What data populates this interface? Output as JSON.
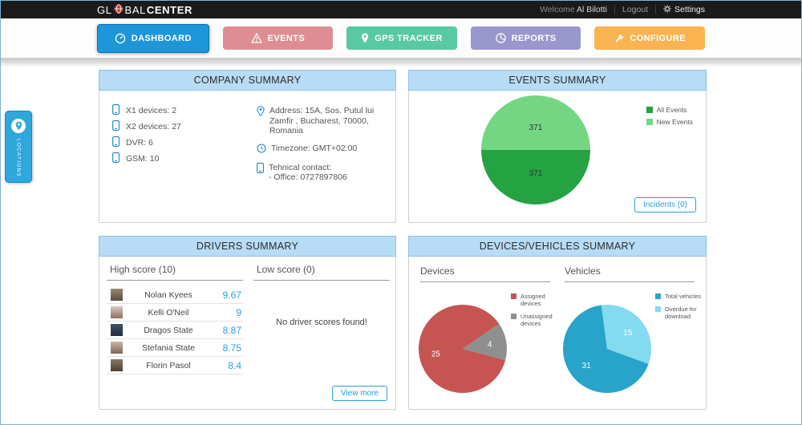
{
  "topbar": {
    "logo_prefix": "GL",
    "logo_mid": "BAL",
    "logo_suffix": "CENTER",
    "welcome_label": "Welcome",
    "username": "Al Bilotti",
    "logout": "Logout",
    "settings": "Settings"
  },
  "nav": {
    "tabs": [
      {
        "label": "DASHBOARD",
        "color": "#1e96d9",
        "icon": "dashboard-icon",
        "active": true
      },
      {
        "label": "EVENTS",
        "color": "#df8d94",
        "icon": "warning-icon",
        "active": false
      },
      {
        "label": "GPS TRACKER",
        "color": "#58c9a4",
        "icon": "pin-icon",
        "active": false
      },
      {
        "label": "REPORTS",
        "color": "#9997cb",
        "icon": "pie-chart-icon",
        "active": false
      },
      {
        "label": "CONFIGURE",
        "color": "#f9b451",
        "icon": "wrench-icon",
        "active": false
      }
    ]
  },
  "locations": {
    "label": "LOCATIONS"
  },
  "panels": {
    "company": {
      "title": "COMPANY SUMMARY",
      "devices": [
        {
          "label": "X1 devices: 2"
        },
        {
          "label": "X2 devices: 27"
        },
        {
          "label": "DVR: 6"
        },
        {
          "label": "GSM: 10"
        }
      ],
      "address": "Address: 15A, Sos. Putul lui Zamfir , Bucharest, 70000, Romania",
      "timezone": "Timezone: GMT+02:00",
      "contact_title": "Tehnical contact:",
      "contact_office": "- Office: 0727897806"
    },
    "events": {
      "title": "EVENTS SUMMARY",
      "incidents_button": "Incidents (0)"
    },
    "drivers": {
      "title": "DRIVERS SUMMARY",
      "high_header": "High score (10)",
      "low_header": "Low score (0)",
      "high_scores": [
        {
          "name": "Nolan Kyees",
          "score": "9.67"
        },
        {
          "name": "Kelli O'Neil",
          "score": "9"
        },
        {
          "name": "Dragos State",
          "score": "8.87"
        },
        {
          "name": "Stefania State",
          "score": "8.75"
        },
        {
          "name": "Florin Pasol",
          "score": "8.4"
        }
      ],
      "no_scores_message": "No driver scores found!",
      "view_more_button": "View more"
    },
    "devices_vehicles": {
      "title": "DEVICES/VEHICLES SUMMARY",
      "devices_header": "Devices",
      "vehicles_header": "Vehicles"
    }
  },
  "chart_data": [
    {
      "id": "events-pie",
      "type": "pie",
      "title": "Events Summary",
      "labels": [
        "All Events",
        "New Events"
      ],
      "values": [
        371,
        371
      ],
      "colors": [
        "#25a242",
        "#74d683"
      ],
      "start_angle": 90,
      "label_color": "#333333",
      "label_r": 0.42,
      "legend_position": "top-right"
    },
    {
      "id": "devices-pie",
      "type": "pie",
      "title": "Devices",
      "labels": [
        "Assigned devices",
        "Unassigned devices"
      ],
      "values": [
        25,
        4
      ],
      "colors": [
        "#c65452",
        "#8f8f8f"
      ],
      "start_angle": 105,
      "label_color": "#ffffff",
      "label_r": 0.62,
      "legend_position": "right"
    },
    {
      "id": "vehicles-pie",
      "type": "pie",
      "title": "Vehicles",
      "labels": [
        "Total vehicles",
        "Overdue for download"
      ],
      "values": [
        31,
        15
      ],
      "colors": [
        "#28a4ca",
        "#84daee"
      ],
      "start_angle": 110,
      "label_color": "#ffffff",
      "label_r": 0.6,
      "legend_position": "right"
    }
  ]
}
